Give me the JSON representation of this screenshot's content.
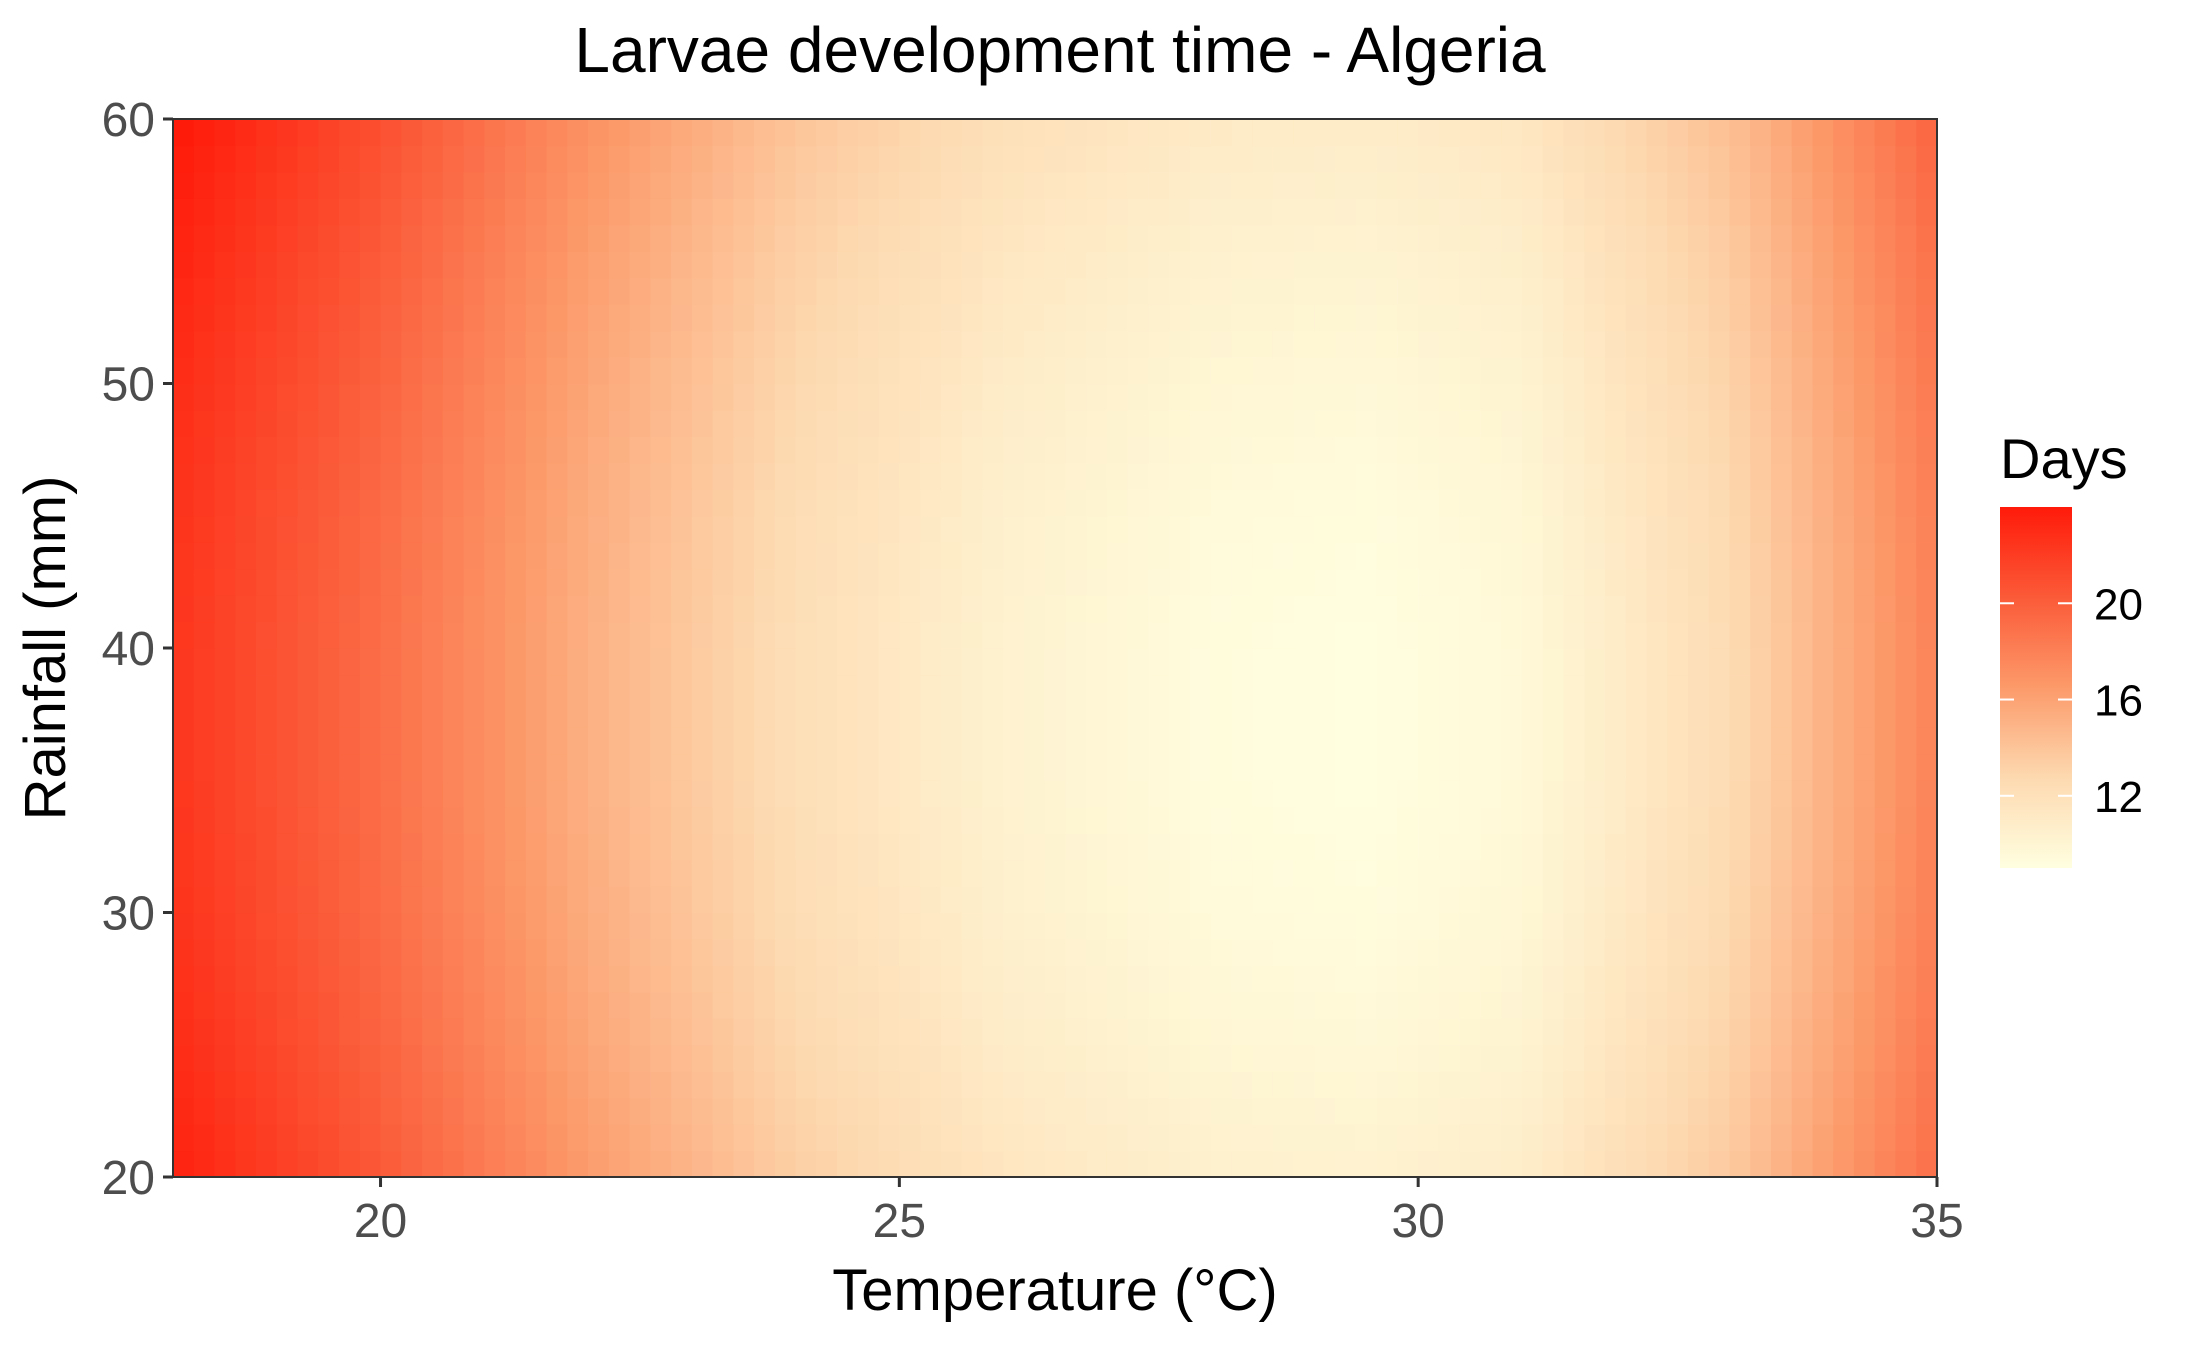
{
  "chart_data": {
    "type": "heatmap",
    "title": "Larvae development time - Algeria",
    "xlabel": "Temperature (°C)",
    "ylabel": "Rainfall (mm)",
    "xlim": [
      18,
      35
    ],
    "ylim": [
      20,
      60
    ],
    "x_ticks": [
      20,
      25,
      30,
      35
    ],
    "y_ticks": [
      20,
      30,
      40,
      50,
      60
    ],
    "grid": false,
    "legend": {
      "title": "Days",
      "position": "right",
      "ticks": [
        12,
        16,
        20
      ],
      "range": [
        9,
        24
      ],
      "colors": [
        "#ffffe0",
        "#fdd9b0",
        "#fc9a6a",
        "#fb5a38",
        "#ff1a0a"
      ]
    },
    "grid_data": {
      "temperature": [
        18,
        20,
        22,
        24,
        26,
        28,
        29.5,
        31,
        33,
        35
      ],
      "rainfall": [
        20,
        25,
        30,
        35,
        40,
        45,
        50,
        55,
        60
      ],
      "days": [
        [
          23.6,
          20.3,
          16.4,
          13.4,
          11.5,
          10.5,
          10.3,
          10.8,
          13.7,
          19.1
        ],
        [
          23.0,
          19.7,
          15.8,
          12.8,
          10.9,
          9.9,
          9.7,
          10.2,
          13.1,
          18.5
        ],
        [
          22.6,
          19.3,
          15.4,
          12.4,
          10.5,
          9.5,
          9.3,
          9.8,
          12.7,
          18.1
        ],
        [
          22.4,
          19.1,
          15.2,
          12.2,
          10.3,
          9.3,
          9.1,
          9.6,
          12.5,
          17.9
        ],
        [
          22.4,
          19.1,
          15.2,
          12.2,
          10.3,
          9.3,
          9.1,
          9.6,
          12.5,
          17.9
        ],
        [
          22.6,
          19.3,
          15.4,
          12.4,
          10.5,
          9.5,
          9.3,
          9.8,
          12.7,
          18.1
        ],
        [
          23.0,
          19.7,
          15.8,
          12.8,
          10.9,
          9.9,
          9.7,
          10.2,
          13.1,
          18.5
        ],
        [
          23.5,
          20.2,
          16.3,
          13.3,
          11.4,
          10.4,
          10.2,
          10.7,
          13.6,
          19.0
        ],
        [
          24.2,
          20.9,
          17.0,
          14.0,
          12.1,
          11.1,
          10.9,
          11.4,
          14.3,
          19.7
        ]
      ]
    }
  }
}
